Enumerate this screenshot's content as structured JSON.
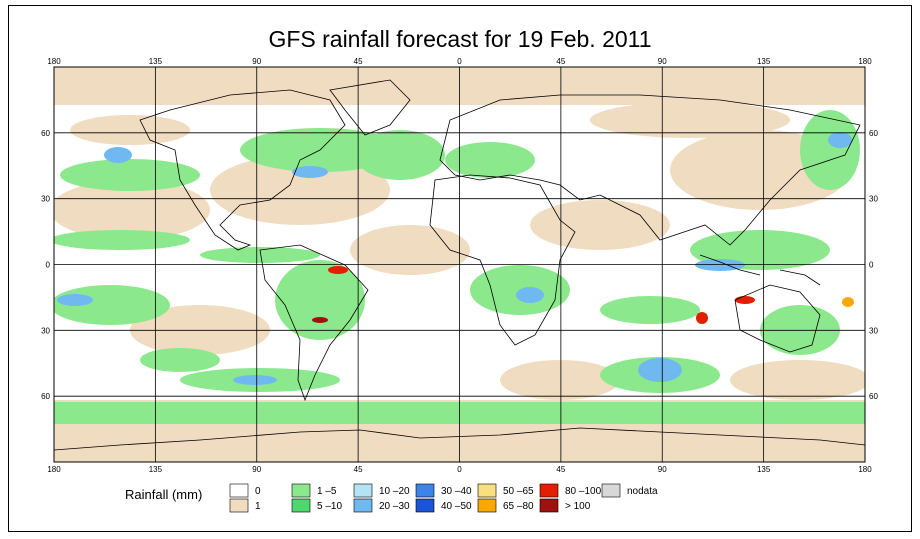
{
  "title": "GFS rainfall forecast for 19 Feb. 2011",
  "longitude_ticks": [
    "180",
    "135",
    "90",
    "45",
    "0",
    "45",
    "90",
    "135",
    "180"
  ],
  "latitude_ticks": [
    "60",
    "30",
    "0",
    "30",
    "60"
  ],
  "legend": {
    "title": "Rainfall (mm)",
    "items": [
      {
        "label": "0",
        "color": "#ffffff"
      },
      {
        "label": "1",
        "color": "#f0dcc0"
      },
      {
        "label": "1 –5",
        "color": "#8ce88c"
      },
      {
        "label": "5 –10",
        "color": "#4cd86c"
      },
      {
        "label": "10 –20",
        "color": "#b4e4f4"
      },
      {
        "label": "20 –30",
        "color": "#70b8f0"
      },
      {
        "label": "30 –40",
        "color": "#3c84e8"
      },
      {
        "label": "40 –50",
        "color": "#1c54d8"
      },
      {
        "label": "50 –65",
        "color": "#f8e080"
      },
      {
        "label": "65 –80",
        "color": "#f8a800"
      },
      {
        "label": "80 –100",
        "color": "#e02000"
      },
      {
        "label": "> 100",
        "color": "#a01010"
      },
      {
        "label": "nodata",
        "color": "#d8d8d8"
      }
    ]
  },
  "colors": {
    "ocean_base": "#ffffff",
    "light_rain": "#f0dcc0",
    "green": "#8ce88c",
    "blue": "#70b8f0",
    "heavy": "#e02000"
  }
}
